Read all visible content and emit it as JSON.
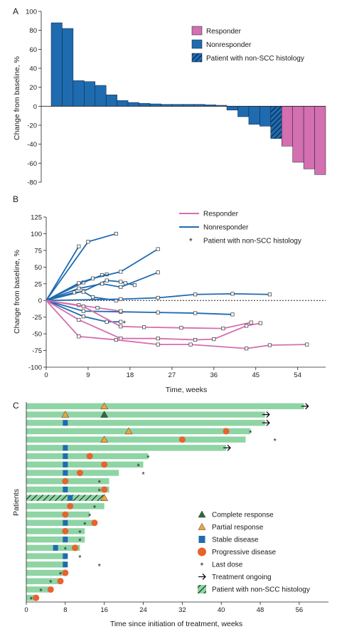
{
  "caption_fragment": "",
  "chart_data": [
    {
      "panel": "A",
      "type": "bar",
      "ylabel": "Change from baseline, %",
      "ylim": [
        -80,
        100
      ],
      "yticks": [
        -80,
        -60,
        -40,
        -20,
        0,
        20,
        40,
        60,
        80,
        100
      ],
      "legend_position": "top-right",
      "legend": [
        {
          "key": "responder",
          "label": "Responder",
          "color": "#d46fb0",
          "hatch": false
        },
        {
          "key": "nonresponder",
          "label": "Nonresponder",
          "color": "#1f6bb0",
          "hatch": false
        },
        {
          "key": "nonscc",
          "label": "Patient with non-SCC histology",
          "color": "#1f6bb0",
          "hatch": true
        }
      ],
      "bars": [
        {
          "value": 88,
          "group": "nonresponder"
        },
        {
          "value": 82,
          "group": "nonresponder"
        },
        {
          "value": 27,
          "group": "nonresponder"
        },
        {
          "value": 26,
          "group": "nonresponder"
        },
        {
          "value": 22,
          "group": "nonresponder"
        },
        {
          "value": 12,
          "group": "nonresponder"
        },
        {
          "value": 6,
          "group": "nonresponder"
        },
        {
          "value": 4,
          "group": "nonresponder"
        },
        {
          "value": 3,
          "group": "nonresponder"
        },
        {
          "value": 2.5,
          "group": "nonresponder"
        },
        {
          "value": 2,
          "group": "nonresponder"
        },
        {
          "value": 2,
          "group": "nonresponder"
        },
        {
          "value": 2,
          "group": "nonresponder"
        },
        {
          "value": 2,
          "group": "nonresponder"
        },
        {
          "value": 1.5,
          "group": "nonresponder"
        },
        {
          "value": 1,
          "group": "nonresponder"
        },
        {
          "value": -4,
          "group": "nonresponder"
        },
        {
          "value": -11,
          "group": "nonresponder"
        },
        {
          "value": -19,
          "group": "nonresponder"
        },
        {
          "value": -21,
          "group": "nonresponder"
        },
        {
          "value": -34,
          "group": "nonscc"
        },
        {
          "value": -42,
          "group": "responder"
        },
        {
          "value": -59,
          "group": "responder"
        },
        {
          "value": -66,
          "group": "responder"
        },
        {
          "value": -72,
          "group": "responder"
        }
      ]
    },
    {
      "panel": "B",
      "type": "line",
      "xlabel": "Time, weeks",
      "ylabel": "Change from baseline, %",
      "xlim": [
        0,
        60
      ],
      "ylim": [
        -100,
        125
      ],
      "xticks": [
        0,
        9,
        18,
        27,
        36,
        45,
        54
      ],
      "yticks": [
        -100,
        -75,
        -50,
        -25,
        0,
        25,
        50,
        75,
        100,
        125
      ],
      "legend_position": "top-right",
      "legend": [
        {
          "key": "responder",
          "label": "Responder",
          "color": "#d46fb0"
        },
        {
          "key": "nonresponder",
          "label": "Nonresponder",
          "color": "#1f6bb0"
        },
        {
          "key": "star",
          "label": "Patient with non-SCC histology",
          "symbol": "*"
        }
      ],
      "series": [
        {
          "group": "nonresponder",
          "points": [
            [
              0,
              0
            ],
            [
              7,
              81
            ]
          ]
        },
        {
          "group": "nonresponder",
          "points": [
            [
              0,
              0
            ],
            [
              9,
              88
            ],
            [
              15,
              100
            ]
          ]
        },
        {
          "group": "nonresponder",
          "points": [
            [
              0,
              0
            ],
            [
              8,
              27
            ],
            [
              12,
              38
            ],
            [
              13,
              39
            ]
          ]
        },
        {
          "group": "nonresponder",
          "points": [
            [
              0,
              0
            ],
            [
              7,
              26
            ],
            [
              10,
              33
            ],
            [
              16,
              43
            ],
            [
              24,
              77
            ]
          ]
        },
        {
          "group": "nonresponder",
          "points": [
            [
              0,
              0
            ],
            [
              8,
              14
            ],
            [
              13,
              30
            ],
            [
              16,
              28
            ],
            [
              17,
              26
            ],
            [
              19,
              23
            ]
          ]
        },
        {
          "group": "nonresponder",
          "points": [
            [
              0,
              0
            ],
            [
              7,
              18
            ],
            [
              12,
              25
            ],
            [
              16,
              20
            ],
            [
              24,
              42
            ]
          ]
        },
        {
          "group": "nonresponder",
          "points": [
            [
              0,
              0
            ],
            [
              6,
              12
            ],
            [
              8,
              13
            ],
            [
              10,
              5
            ],
            [
              15,
              0
            ]
          ]
        },
        {
          "group": "nonresponder",
          "points": [
            [
              0,
              0
            ],
            [
              16,
              2
            ],
            [
              24,
              4
            ],
            [
              32,
              9
            ],
            [
              40,
              10
            ],
            [
              48,
              9
            ]
          ]
        },
        {
          "group": "nonresponder",
          "points": [
            [
              0,
              0
            ],
            [
              8,
              -16
            ],
            [
              16,
              -17
            ],
            [
              24,
              -18
            ],
            [
              32,
              -19
            ],
            [
              40,
              -21
            ]
          ]
        },
        {
          "group": "nonresponder",
          "points": [
            [
              0,
              0
            ],
            [
              8,
              -24
            ],
            [
              13,
              -32
            ],
            [
              16,
              -32
            ]
          ]
        },
        {
          "group": "responder",
          "points": [
            [
              0,
              0
            ],
            [
              7,
              -7
            ],
            [
              11,
              -11
            ],
            [
              16,
              -16
            ]
          ]
        },
        {
          "group": "responder",
          "points": [
            [
              0,
              0
            ],
            [
              8,
              -9
            ],
            [
              16,
              -39
            ],
            [
              21,
              -40
            ],
            [
              29,
              -41
            ],
            [
              38,
              -42
            ],
            [
              44,
              -33
            ]
          ]
        },
        {
          "group": "responder",
          "points": [
            [
              0,
              0
            ],
            [
              7,
              -29
            ],
            [
              16,
              -57
            ],
            [
              24,
              -57
            ],
            [
              32,
              -59
            ],
            [
              36,
              -58
            ],
            [
              43,
              -38
            ],
            [
              46,
              -34
            ]
          ]
        },
        {
          "group": "responder",
          "points": [
            [
              0,
              0
            ],
            [
              7,
              -54
            ],
            [
              15,
              -59
            ],
            [
              24,
              -66
            ],
            [
              31,
              -66
            ],
            [
              43,
              -72
            ],
            [
              48,
              -67
            ],
            [
              56,
              -66
            ]
          ]
        }
      ],
      "stars": [
        [
          16,
          -33
        ]
      ]
    },
    {
      "panel": "C",
      "type": "bar",
      "orientation": "horizontal",
      "xlabel": "Time since initiation of treatment, weeks",
      "ylabel": "Patients",
      "xlim": [
        0,
        62
      ],
      "xticks": [
        0,
        8,
        16,
        24,
        32,
        40,
        48,
        56
      ],
      "legend_position": "bottom-right",
      "legend": [
        {
          "key": "cr",
          "label": "Complete response",
          "color": "#2e6b3a",
          "symbol": "triangle"
        },
        {
          "key": "pr",
          "label": "Partial response",
          "color": "#f0a43a",
          "symbol": "triangle"
        },
        {
          "key": "sd",
          "label": "Stable disease",
          "color": "#1f6bb0",
          "symbol": "square"
        },
        {
          "key": "pd",
          "label": "Progressive disease",
          "color": "#e8622e",
          "symbol": "circle"
        },
        {
          "key": "ld",
          "label": "Last dose",
          "symbol": "*"
        },
        {
          "key": "to",
          "label": "Treatment ongoing",
          "symbol": "arrow"
        },
        {
          "key": "ns",
          "label": "Patient with non-SCC histology",
          "color": "#8fd4a4",
          "hatch": true
        }
      ],
      "bar_color": "#8fd4a4",
      "patients": [
        {
          "end": 57,
          "ongoing": true,
          "star": null,
          "cr": null,
          "pr": 16,
          "sd": null,
          "pd": null,
          "hatch": false
        },
        {
          "end": 49,
          "ongoing": true,
          "star": null,
          "cr": 16,
          "pr": 8,
          "sd": null,
          "pd": null,
          "hatch": false
        },
        {
          "end": 49,
          "ongoing": true,
          "star": null,
          "cr": null,
          "pr": null,
          "sd": 8,
          "pd": null,
          "hatch": false
        },
        {
          "end": 46,
          "ongoing": false,
          "star": 46,
          "cr": null,
          "pr": 21,
          "sd": null,
          "pd": 41,
          "hatch": false
        },
        {
          "end": 45,
          "ongoing": false,
          "star": 51,
          "cr": null,
          "pr": 16,
          "sd": null,
          "pd": 32,
          "hatch": false
        },
        {
          "end": 41,
          "ongoing": true,
          "star": null,
          "cr": null,
          "pr": null,
          "sd": 8,
          "pd": null,
          "hatch": false
        },
        {
          "end": 25,
          "ongoing": false,
          "star": 25,
          "cr": null,
          "pr": null,
          "sd": 8,
          "pd": 13,
          "hatch": false
        },
        {
          "end": 24,
          "ongoing": false,
          "star": 23,
          "cr": null,
          "pr": null,
          "sd": 8,
          "pd": 16,
          "hatch": false
        },
        {
          "end": 19,
          "ongoing": false,
          "star": 24,
          "cr": null,
          "pr": null,
          "sd": 8,
          "pd": 11,
          "hatch": false
        },
        {
          "end": 17,
          "ongoing": false,
          "star": 15,
          "cr": null,
          "pr": null,
          "sd": null,
          "pd": 8,
          "hatch": false
        },
        {
          "end": 17,
          "ongoing": false,
          "star": 15,
          "cr": null,
          "pr": null,
          "sd": 8,
          "pd": 16,
          "hatch": false
        },
        {
          "end": 16,
          "ongoing": false,
          "star": null,
          "cr": null,
          "pr": 16,
          "sd": 9,
          "pd": null,
          "hatch": true
        },
        {
          "end": 16,
          "ongoing": false,
          "star": 14,
          "cr": null,
          "pr": null,
          "sd": null,
          "pd": 9,
          "hatch": false
        },
        {
          "end": 13,
          "ongoing": false,
          "star": 13,
          "cr": null,
          "pr": null,
          "sd": null,
          "pd": 8,
          "hatch": false
        },
        {
          "end": 14,
          "ongoing": false,
          "star": 12,
          "cr": null,
          "pr": null,
          "sd": 8,
          "pd": 14,
          "hatch": false
        },
        {
          "end": 12,
          "ongoing": false,
          "star": 11,
          "cr": null,
          "pr": null,
          "sd": null,
          "pd": 8,
          "hatch": false
        },
        {
          "end": 12,
          "ongoing": false,
          "star": 11,
          "cr": null,
          "pr": null,
          "sd": 8,
          "pd": null,
          "hatch": false
        },
        {
          "end": 11,
          "ongoing": false,
          "star": 8,
          "cr": null,
          "pr": null,
          "sd": 6,
          "pd": 10,
          "hatch": false
        },
        {
          "end": 8,
          "ongoing": false,
          "star": 11,
          "cr": null,
          "pr": null,
          "sd": 8,
          "pd": null,
          "hatch": false
        },
        {
          "end": 8,
          "ongoing": false,
          "star": 15,
          "cr": null,
          "pr": null,
          "sd": 8,
          "pd": null,
          "hatch": false
        },
        {
          "end": 8,
          "ongoing": false,
          "star": 7,
          "cr": null,
          "pr": null,
          "sd": null,
          "pd": 8,
          "hatch": false
        },
        {
          "end": 7,
          "ongoing": false,
          "star": 5,
          "cr": null,
          "pr": null,
          "sd": null,
          "pd": 7,
          "hatch": false
        },
        {
          "end": 5,
          "ongoing": false,
          "star": 3,
          "cr": null,
          "pr": null,
          "sd": null,
          "pd": 5,
          "hatch": false
        },
        {
          "end": 2,
          "ongoing": false,
          "star": 1,
          "cr": null,
          "pr": null,
          "sd": null,
          "pd": 2,
          "hatch": false
        }
      ]
    }
  ]
}
